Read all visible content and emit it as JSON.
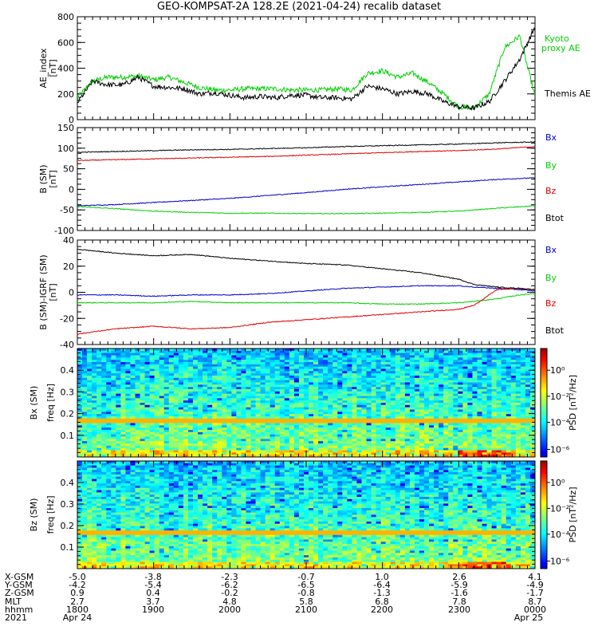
{
  "title": "GEO-KOMPSAT-2A 128.2E (2021-04-24) recalib dataset",
  "colors": {
    "black": "#000000",
    "red": "#e00000",
    "green": "#00d000",
    "blue": "#0000d0",
    "lime": "#22dd22"
  },
  "chart_data": [
    {
      "type": "line",
      "panel": "ae",
      "ylabel": [
        "AE_index",
        "[nT]"
      ],
      "ylim": [
        0,
        800
      ],
      "yticks": [
        0,
        200,
        400,
        600,
        800
      ],
      "x": [
        18.0,
        18.2,
        18.4,
        18.6,
        18.8,
        19.0,
        19.2,
        19.4,
        19.6,
        19.8,
        20.0,
        20.2,
        20.4,
        20.6,
        20.8,
        21.0,
        21.2,
        21.4,
        21.6,
        21.8,
        22.0,
        22.2,
        22.4,
        22.6,
        22.8,
        23.0,
        23.2,
        23.4,
        23.6,
        23.8,
        24.0
      ],
      "series": [
        {
          "name": "Kyoto proxy AE",
          "color": "#00d000",
          "values": [
            170,
            300,
            330,
            330,
            340,
            310,
            330,
            290,
            250,
            230,
            230,
            240,
            240,
            240,
            230,
            230,
            230,
            240,
            230,
            360,
            380,
            330,
            360,
            290,
            200,
            100,
            90,
            200,
            560,
            650,
            180
          ]
        },
        {
          "name": "Themis AE",
          "color": "#000000",
          "values": [
            130,
            300,
            270,
            270,
            330,
            260,
            250,
            240,
            200,
            210,
            190,
            170,
            180,
            170,
            190,
            190,
            170,
            170,
            160,
            260,
            240,
            200,
            220,
            200,
            140,
            100,
            90,
            140,
            300,
            470,
            720
          ]
        }
      ]
    },
    {
      "type": "line",
      "panel": "bgsm",
      "ylabel": [
        "B (SM)",
        "[nT]"
      ],
      "ylim": [
        -100,
        150
      ],
      "yticks": [
        -100,
        -50,
        0,
        50,
        100,
        150
      ],
      "x": [
        18.0,
        18.5,
        19.0,
        19.5,
        20.0,
        20.5,
        21.0,
        21.5,
        22.0,
        22.5,
        23.0,
        23.5,
        24.0
      ],
      "series": [
        {
          "name": "Bx",
          "color": "#0000d0",
          "values": [
            -40,
            -37,
            -32,
            -27,
            -22,
            -15,
            -8,
            0,
            6,
            12,
            18,
            24,
            28
          ]
        },
        {
          "name": "By",
          "color": "#00d000",
          "values": [
            -42,
            -47,
            -53,
            -56,
            -58,
            -58,
            -59,
            -59,
            -58,
            -56,
            -53,
            -46,
            -40
          ]
        },
        {
          "name": "Bz",
          "color": "#e00000",
          "values": [
            70,
            72,
            74,
            76,
            78,
            80,
            83,
            86,
            89,
            92,
            94,
            98,
            104
          ]
        },
        {
          "name": "Btot",
          "color": "#000000",
          "values": [
            90,
            92,
            94,
            96,
            97,
            99,
            101,
            104,
            106,
            108,
            110,
            113,
            115
          ]
        }
      ],
      "legend": [
        "Bx",
        "By",
        "Bz",
        "Btot"
      ]
    },
    {
      "type": "line",
      "panel": "bigrf",
      "ylabel": [
        "B (SM)-IGRF (SM)",
        "[nT]"
      ],
      "ylim": [
        -40,
        40
      ],
      "yticks": [
        -40,
        -20,
        0,
        20,
        40
      ],
      "x": [
        18.0,
        18.5,
        19.0,
        19.5,
        20.0,
        20.5,
        21.0,
        21.5,
        22.0,
        22.5,
        23.0,
        23.2,
        23.5,
        23.8,
        24.0
      ],
      "series": [
        {
          "name": "Bx",
          "color": "#0000d0",
          "values": [
            -2,
            -2,
            -3,
            -2,
            -2,
            -1,
            1,
            3,
            4,
            5,
            5,
            4,
            3,
            2,
            1
          ]
        },
        {
          "name": "By",
          "color": "#00d000",
          "values": [
            -8,
            -8,
            -8,
            -7,
            -8,
            -8,
            -8,
            -8,
            -9,
            -9,
            -8,
            -7,
            -5,
            -2,
            -1
          ]
        },
        {
          "name": "Bz",
          "color": "#e00000",
          "values": [
            -32,
            -28,
            -26,
            -28,
            -27,
            -23,
            -21,
            -19,
            -17,
            -15,
            -13,
            -10,
            2,
            3,
            2
          ]
        },
        {
          "name": "Btot",
          "color": "#000000",
          "values": [
            33,
            30,
            28,
            29,
            26,
            24,
            22,
            21,
            18,
            15,
            10,
            6,
            4,
            3,
            2
          ]
        }
      ],
      "legend": [
        "Bx",
        "By",
        "Bz",
        "Btot"
      ]
    },
    {
      "type": "heatmap",
      "panel": "spec_bx",
      "ylabel": [
        "Bx (SM)",
        "freq [Hz]"
      ],
      "yticks": [
        "0.1",
        "0.2",
        "0.3",
        "0.4"
      ],
      "colorbar_label": "PSD [nT²/Hz]",
      "colorbar_ticks": [
        "10⁰",
        "10⁻²",
        "10⁻⁴",
        "10⁻⁶"
      ]
    },
    {
      "type": "heatmap",
      "panel": "spec_bz",
      "ylabel": [
        "Bz (SM)",
        "freq [Hz]"
      ],
      "yticks": [
        "0.1",
        "0.2",
        "0.3",
        "0.4"
      ],
      "colorbar_label": "PSD [nT²/Hz]",
      "colorbar_ticks": [
        "10⁰",
        "10⁻²",
        "10⁻⁴",
        "10⁻⁶"
      ]
    }
  ],
  "ae_legend": {
    "kyoto": [
      "Kyoto",
      "proxy AE"
    ],
    "themis": "Themis AE"
  },
  "axis_table": {
    "row_labels": [
      "X-GSM",
      "Y-GSM",
      "Z-GSM",
      "MLT",
      "hhmm",
      "2021"
    ],
    "columns": [
      [
        "-5.0",
        "-4.2",
        "0.9",
        "2.7",
        "1800",
        "Apr 24"
      ],
      [
        "-3.8",
        "-5.4",
        "0.4",
        "3.7",
        "1900",
        ""
      ],
      [
        "-2.3",
        "-6.2",
        "-0.2",
        "4.8",
        "2000",
        ""
      ],
      [
        "-0.7",
        "-6.5",
        "-0.8",
        "5.8",
        "2100",
        ""
      ],
      [
        "1.0",
        "-6.4",
        "-1.3",
        "6.8",
        "2200",
        ""
      ],
      [
        "2.6",
        "-5.9",
        "-1.6",
        "7.8",
        "2300",
        ""
      ],
      [
        "4.1",
        "-4.9",
        "-1.7",
        "8.7",
        "0000",
        "Apr 25"
      ]
    ]
  }
}
